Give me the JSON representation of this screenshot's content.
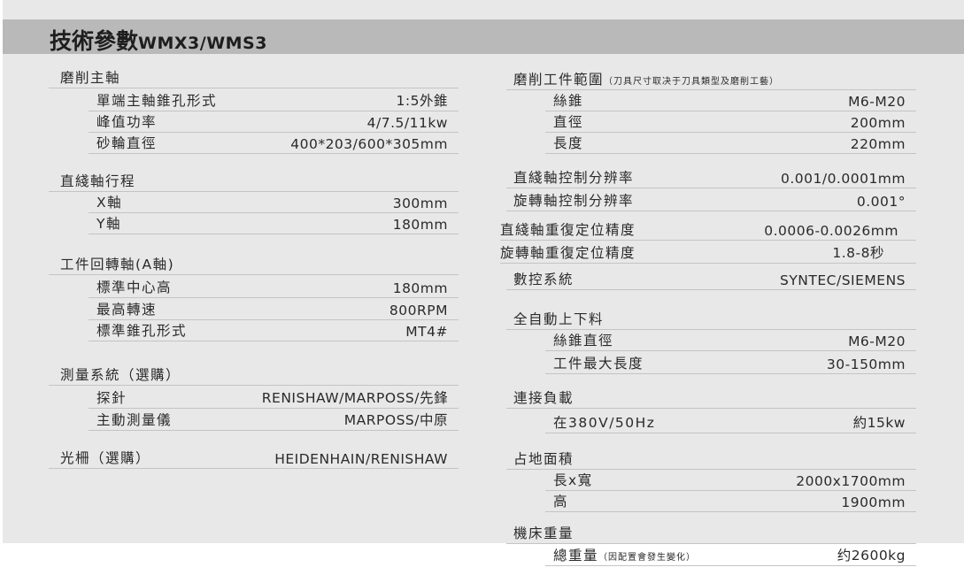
{
  "title": {
    "main": "技術參數",
    "model": "WMX3/WMS3"
  },
  "left": [
    {
      "type": "h",
      "label": "磨削主軸"
    },
    {
      "type": "i",
      "label": "單端主軸錐孔形式",
      "value": "1:5外錐"
    },
    {
      "type": "i",
      "label": "峰值功率",
      "value": "4/7.5/11kw"
    },
    {
      "type": "i",
      "label": "砂輪直徑",
      "value": "400*203/600*305mm"
    },
    {
      "type": "h",
      "label": "直綫軸行程"
    },
    {
      "type": "i",
      "label": "X軸",
      "value": "300mm"
    },
    {
      "type": "i",
      "label": "Y軸",
      "value": "180mm"
    },
    {
      "type": "h",
      "label": "工件回轉軸(A軸)"
    },
    {
      "type": "i",
      "label": "標準中心高",
      "value": "180mm"
    },
    {
      "type": "i",
      "label": "最高轉速",
      "value": "800RPM"
    },
    {
      "type": "i",
      "label": "標準錐孔形式",
      "value": "MT4#"
    },
    {
      "type": "h",
      "label": "測量系統（選購）"
    },
    {
      "type": "i",
      "label": "探針",
      "value": "RENISHAW/MARPOSS/先鋒"
    },
    {
      "type": "i",
      "label": "主動測量儀",
      "value": "MARPOSS/中原"
    },
    {
      "type": "h",
      "label": "光柵（選購）",
      "value": "HEIDENHAIN/RENISHAW"
    }
  ],
  "right": [
    {
      "type": "h",
      "label": "磨削工件範圍",
      "note": "（刀具尺寸取决于刀具類型及磨削工藝）"
    },
    {
      "type": "i",
      "label": "絲錐",
      "value": "M6-M20"
    },
    {
      "type": "i",
      "label": "直徑",
      "value": "200mm"
    },
    {
      "type": "i",
      "label": "長度",
      "value": "220mm"
    },
    {
      "type": "h",
      "label": "直綫軸控制分辨率",
      "value": "0.001/0.0001mm"
    },
    {
      "type": "h",
      "label": "旋轉軸控制分辨率",
      "value": "0.001°"
    },
    {
      "type": "h",
      "label": "直綫軸重復定位精度",
      "value": "0.0006-0.0026mm"
    },
    {
      "type": "h",
      "label": "旋轉軸重復定位精度",
      "value": "1.8-8秒"
    },
    {
      "type": "h",
      "label": "數控系統",
      "value": "SYNTEC/SIEMENS"
    },
    {
      "type": "h",
      "label": "全自動上下料"
    },
    {
      "type": "i",
      "label": "絲錐直徑",
      "value": "M6-M20"
    },
    {
      "type": "i",
      "label": "工件最大長度",
      "value": "30-150mm"
    },
    {
      "type": "h",
      "label": "連接負載"
    },
    {
      "type": "i",
      "label": "在380V/50Hz",
      "value": "約15kw"
    },
    {
      "type": "h",
      "label": "占地面積"
    },
    {
      "type": "i",
      "label": "長x寬",
      "value": "2000x1700mm"
    },
    {
      "type": "i",
      "label": "高",
      "value": "1900mm"
    },
    {
      "type": "h",
      "label": "機床重量"
    },
    {
      "type": "i",
      "label": "總重量",
      "note": "（因配置會發生變化）",
      "value": "约2600kg"
    }
  ]
}
